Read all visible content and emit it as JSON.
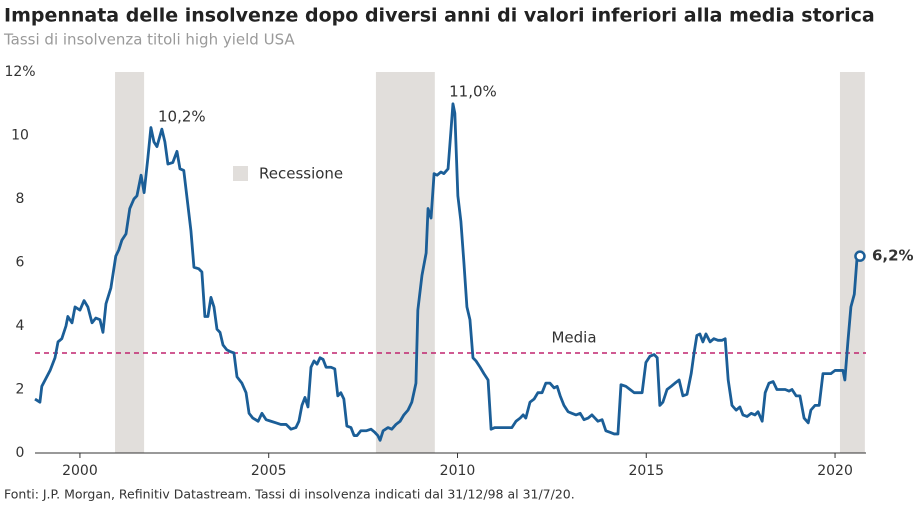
{
  "chart_data": {
    "type": "line",
    "title": "Impennata delle insolvenze dopo diversi anni di valori inferiori alla media storica",
    "subtitle": "Tassi di insolvenza titoli high yield USA",
    "source": "Fonti: J.P. Morgan, Refinitiv Datastream. Tassi di insolvenza indicati dal 31/12/98 al 31/7/20.",
    "xlim": [
      1998.81,
      2020.82
    ],
    "xticks": [
      2000,
      2005,
      2010,
      2015,
      2020
    ],
    "ylim": [
      0,
      12
    ],
    "yticks": [
      0,
      2,
      4,
      6,
      8,
      10,
      {
        "value": 12,
        "label": "12%"
      }
    ],
    "x": [
      1998.81,
      1998.94,
      1998.99,
      1999.21,
      1999.34,
      1999.42,
      1999.52,
      1999.63,
      1999.68,
      1999.79,
      1999.87,
      2000.0,
      2000.11,
      2000.21,
      2000.32,
      2000.42,
      2000.53,
      2000.61,
      2000.69,
      2000.82,
      2000.95,
      2001.03,
      2001.11,
      2001.22,
      2001.32,
      2001.43,
      2001.51,
      2001.62,
      2001.7,
      2001.8,
      2001.88,
      2001.96,
      2002.04,
      2002.17,
      2002.25,
      2002.33,
      2002.46,
      2002.57,
      2002.65,
      2002.75,
      2002.86,
      2002.94,
      2003.02,
      2003.15,
      2003.23,
      2003.31,
      2003.39,
      2003.47,
      2003.55,
      2003.63,
      2003.71,
      2003.79,
      2003.89,
      2003.97,
      2004.08,
      2004.16,
      2004.29,
      2004.4,
      2004.48,
      2004.58,
      2004.72,
      2004.82,
      2004.93,
      2005.06,
      2005.19,
      2005.32,
      2005.46,
      2005.59,
      2005.72,
      2005.8,
      2005.88,
      2005.96,
      2006.04,
      2006.12,
      2006.2,
      2006.28,
      2006.36,
      2006.44,
      2006.52,
      2006.65,
      2006.75,
      2006.83,
      2006.91,
      2006.99,
      2007.07,
      2007.18,
      2007.26,
      2007.34,
      2007.44,
      2007.58,
      2007.71,
      2007.81,
      2007.89,
      2007.95,
      2008.03,
      2008.16,
      2008.26,
      2008.37,
      2008.48,
      2008.58,
      2008.69,
      2008.79,
      2008.9,
      2008.95,
      2009.06,
      2009.17,
      2009.22,
      2009.3,
      2009.38,
      2009.46,
      2009.56,
      2009.64,
      2009.75,
      2009.83,
      2009.88,
      2009.93,
      2010.01,
      2010.09,
      2010.17,
      2010.25,
      2010.33,
      2010.41,
      2010.49,
      2010.6,
      2010.7,
      2010.81,
      2010.89,
      2010.99,
      2011.13,
      2011.28,
      2011.44,
      2011.55,
      2011.66,
      2011.74,
      2011.81,
      2011.92,
      2012.03,
      2012.13,
      2012.24,
      2012.34,
      2012.45,
      2012.56,
      2012.64,
      2012.72,
      2012.82,
      2012.93,
      2013.03,
      2013.14,
      2013.25,
      2013.35,
      2013.46,
      2013.56,
      2013.64,
      2013.72,
      2013.83,
      2013.93,
      2014.04,
      2014.15,
      2014.25,
      2014.33,
      2014.46,
      2014.57,
      2014.68,
      2014.78,
      2014.89,
      2014.99,
      2015.1,
      2015.21,
      2015.29,
      2015.36,
      2015.44,
      2015.55,
      2015.66,
      2015.76,
      2015.87,
      2015.97,
      2016.08,
      2016.19,
      2016.26,
      2016.34,
      2016.42,
      2016.5,
      2016.58,
      2016.69,
      2016.79,
      2016.9,
      2017.01,
      2017.09,
      2017.17,
      2017.27,
      2017.38,
      2017.48,
      2017.56,
      2017.67,
      2017.78,
      2017.88,
      2017.96,
      2018.07,
      2018.15,
      2018.25,
      2018.36,
      2018.46,
      2018.57,
      2018.68,
      2018.78,
      2018.86,
      2018.97,
      2019.07,
      2019.18,
      2019.29,
      2019.36,
      2019.47,
      2019.58,
      2019.68,
      2019.79,
      2019.89,
      2020.0,
      2020.11,
      2020.21,
      2020.26,
      2020.34,
      2020.42,
      2020.51,
      2020.58,
      2020.66
    ],
    "series": [
      {
        "color": "#1b5e97",
        "values": [
          1.7,
          1.6,
          2.1,
          2.6,
          3.0,
          3.5,
          3.6,
          4.0,
          4.3,
          4.1,
          4.6,
          4.5,
          4.8,
          4.6,
          4.1,
          4.25,
          4.2,
          3.8,
          4.7,
          5.2,
          6.2,
          6.4,
          6.7,
          6.9,
          7.7,
          8.0,
          8.1,
          8.75,
          8.2,
          9.3,
          10.25,
          9.8,
          9.65,
          10.2,
          9.8,
          9.1,
          9.15,
          9.5,
          8.95,
          8.9,
          7.8,
          7.0,
          5.85,
          5.8,
          5.7,
          4.3,
          4.3,
          4.9,
          4.6,
          3.9,
          3.8,
          3.4,
          3.25,
          3.2,
          3.15,
          2.4,
          2.2,
          1.9,
          1.25,
          1.1,
          1.0,
          1.25,
          1.05,
          1.0,
          0.95,
          0.9,
          0.9,
          0.75,
          0.8,
          1.0,
          1.5,
          1.75,
          1.45,
          2.7,
          2.9,
          2.8,
          3.0,
          2.95,
          2.7,
          2.7,
          2.65,
          1.8,
          1.9,
          1.7,
          0.85,
          0.8,
          0.55,
          0.55,
          0.7,
          0.7,
          0.75,
          0.65,
          0.55,
          0.4,
          0.7,
          0.8,
          0.75,
          0.9,
          1.0,
          1.2,
          1.35,
          1.6,
          2.2,
          4.5,
          5.6,
          6.3,
          7.7,
          7.4,
          8.8,
          8.75,
          8.85,
          8.8,
          8.95,
          10.2,
          11.0,
          10.7,
          8.1,
          7.3,
          6.0,
          4.6,
          4.2,
          3.0,
          2.9,
          2.7,
          2.5,
          2.3,
          0.75,
          0.8,
          0.8,
          0.8,
          0.8,
          1.0,
          1.1,
          1.2,
          1.1,
          1.6,
          1.7,
          1.9,
          1.9,
          2.2,
          2.2,
          2.05,
          2.1,
          1.8,
          1.5,
          1.3,
          1.25,
          1.2,
          1.25,
          1.05,
          1.1,
          1.2,
          1.1,
          1.0,
          1.05,
          0.7,
          0.65,
          0.6,
          0.6,
          2.15,
          2.1,
          2.0,
          1.9,
          1.9,
          1.9,
          2.85,
          3.05,
          3.1,
          3.0,
          1.5,
          1.6,
          2.0,
          2.1,
          2.2,
          2.3,
          1.8,
          1.85,
          2.5,
          3.1,
          3.7,
          3.75,
          3.5,
          3.75,
          3.5,
          3.6,
          3.55,
          3.55,
          3.6,
          2.3,
          1.5,
          1.35,
          1.45,
          1.2,
          1.15,
          1.25,
          1.2,
          1.3,
          1.0,
          1.9,
          2.2,
          2.25,
          2.0,
          2.0,
          2.0,
          1.95,
          2.0,
          1.8,
          1.8,
          1.1,
          0.95,
          1.35,
          1.5,
          1.5,
          2.5,
          2.5,
          2.5,
          2.6,
          2.6,
          2.6,
          2.3,
          3.5,
          4.6,
          5.0,
          6.1,
          6.2
        ]
      }
    ],
    "recessions": {
      "name": "Recessione",
      "color": "#e1dedb",
      "ranges": [
        [
          2000.93,
          2001.7
        ],
        [
          2007.84,
          2009.4
        ],
        [
          2020.13,
          2020.79
        ]
      ]
    },
    "average": {
      "label": "Media",
      "value": 3.15,
      "color": "#c0246e"
    },
    "annotations": [
      {
        "label": "10,2%",
        "x": 2002.17,
        "value": 10.2
      },
      {
        "label": "11,0%",
        "x": 2009.88,
        "value": 11.0
      }
    ],
    "end_label": {
      "label": "6,2%",
      "x": 2020.66,
      "value": 6.2
    }
  }
}
